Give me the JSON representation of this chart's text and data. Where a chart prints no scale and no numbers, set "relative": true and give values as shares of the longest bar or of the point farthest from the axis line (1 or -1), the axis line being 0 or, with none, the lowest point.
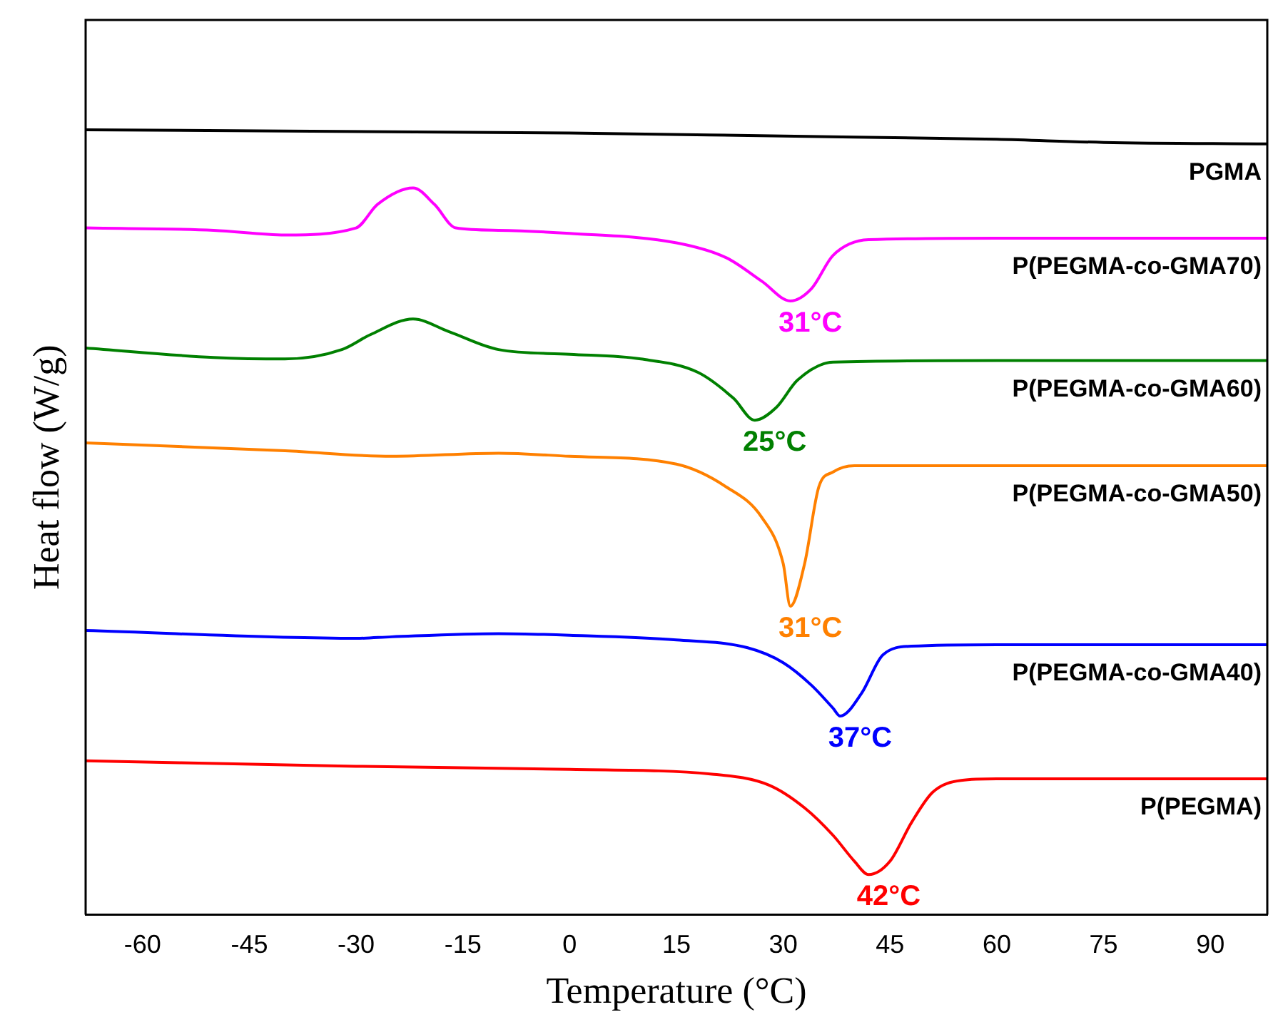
{
  "chart_data": {
    "type": "line",
    "xlabel": "Temperature (°C)",
    "ylabel": "Heat flow (W/g)",
    "relative": true,
    "tick_labels": "x",
    "grid": false,
    "legend": false,
    "marker": "none",
    "line_style": "solid",
    "xlim": [
      -68,
      98
    ],
    "xticks": [
      -60,
      -45,
      -30,
      -15,
      0,
      15,
      30,
      45,
      60,
      75,
      90
    ],
    "series": [
      {
        "name": "PGMA",
        "color": "#000000",
        "x": [
          -68,
          0,
          30,
          60,
          75,
          98
        ],
        "values": [
          1,
          0.996,
          0.992,
          0.988,
          0.984,
          0.982
        ]
      },
      {
        "name": "P(PEGMA-co-GMA70)",
        "color": "#ff00ff",
        "x": [
          -68,
          -50,
          -40,
          -30,
          -27,
          -22,
          -19,
          -16,
          -10,
          0,
          15,
          22,
          27,
          31,
          34,
          37,
          42,
          60,
          98
        ],
        "values": [
          0.875,
          0.872,
          0.866,
          0.875,
          0.905,
          0.926,
          0.905,
          0.875,
          0.872,
          0.868,
          0.856,
          0.837,
          0.807,
          0.782,
          0.798,
          0.84,
          0.86,
          0.862,
          0.862
        ]
      },
      {
        "name": "P(PEGMA-co-GMA60)",
        "color": "#008000",
        "x": [
          -68,
          -50,
          -40,
          -32,
          -28,
          -22,
          -17,
          -10,
          0,
          10,
          18,
          23,
          26,
          29,
          32,
          37,
          60,
          98
        ],
        "values": [
          0.722,
          0.71,
          0.708,
          0.72,
          0.739,
          0.759,
          0.743,
          0.72,
          0.714,
          0.708,
          0.691,
          0.658,
          0.63,
          0.646,
          0.681,
          0.704,
          0.706,
          0.706
        ]
      },
      {
        "name": "P(PEGMA-co-GMA50)",
        "color": "#ff8000",
        "x": [
          -68,
          -40,
          -25,
          -10,
          0,
          15,
          22,
          27,
          30,
          31,
          33,
          35,
          37,
          40,
          98
        ],
        "values": [
          0.601,
          0.591,
          0.584,
          0.588,
          0.584,
          0.574,
          0.545,
          0.506,
          0.447,
          0.393,
          0.447,
          0.545,
          0.564,
          0.572,
          0.572
        ]
      },
      {
        "name": "P(PEGMA-co-GMA40)",
        "color": "#0000ff",
        "x": [
          -68,
          -30,
          -25,
          -10,
          0,
          15,
          25,
          30,
          34,
          37,
          38,
          41,
          44,
          48,
          60,
          98
        ],
        "values": [
          0.362,
          0.352,
          0.354,
          0.358,
          0.356,
          0.35,
          0.34,
          0.321,
          0.292,
          0.263,
          0.253,
          0.282,
          0.331,
          0.342,
          0.344,
          0.344
        ]
      },
      {
        "name": "P(PEGMA)",
        "color": "#ff0000",
        "x": [
          -68,
          -30,
          0,
          20,
          28,
          33,
          37,
          40,
          42,
          45,
          48,
          51,
          55,
          60,
          98
        ],
        "values": [
          0.196,
          0.189,
          0.185,
          0.179,
          0.165,
          0.136,
          0.101,
          0.068,
          0.051,
          0.068,
          0.117,
          0.156,
          0.171,
          0.173,
          0.173
        ]
      }
    ],
    "annotations": [
      {
        "text": "31°C",
        "x": 31,
        "y": 0.782
      },
      {
        "text": "25°C",
        "x": 26,
        "y": 0.63
      },
      {
        "text": "31°C",
        "x": 31,
        "y": 0.393
      },
      {
        "text": "37°C",
        "x": 38,
        "y": 0.253
      },
      {
        "text": "42°C",
        "x": 42,
        "y": 0.051
      }
    ]
  }
}
